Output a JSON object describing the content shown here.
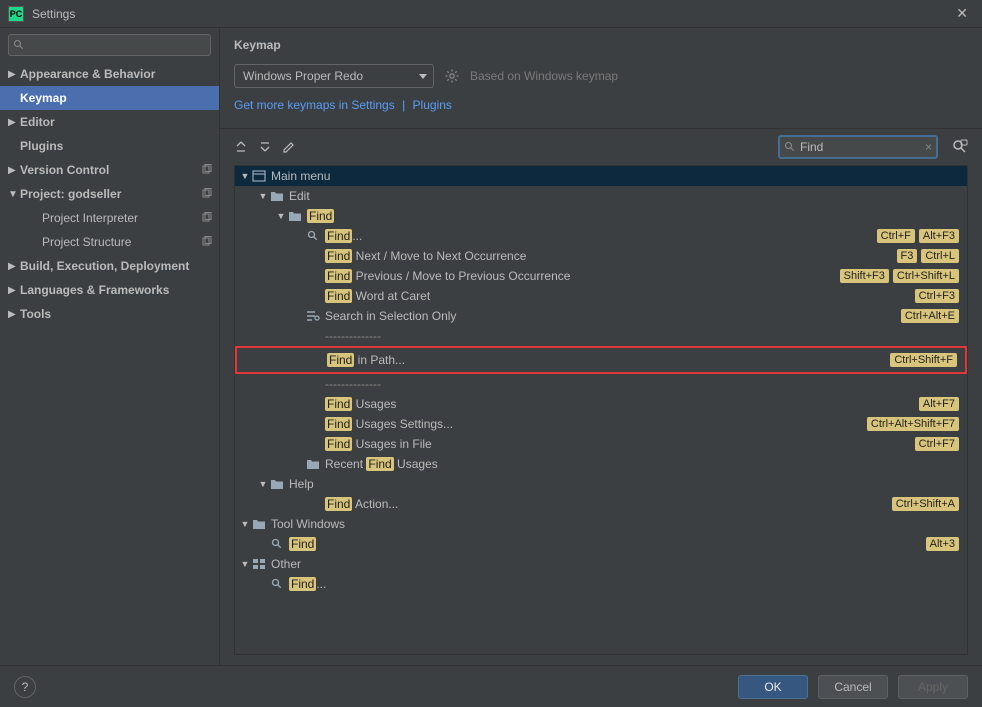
{
  "window": {
    "title": "Settings"
  },
  "search": {
    "placeholder": ""
  },
  "sidebar": {
    "items": [
      {
        "label": "Appearance & Behavior",
        "arrow": "▶",
        "bold": true
      },
      {
        "label": "Keymap",
        "bold": true,
        "selected": true
      },
      {
        "label": "Editor",
        "arrow": "▶",
        "bold": true
      },
      {
        "label": "Plugins",
        "bold": true
      },
      {
        "label": "Version Control",
        "arrow": "▶",
        "bold": true,
        "copy": true
      },
      {
        "label": "Project: godseller",
        "arrow": "▼",
        "bold": true,
        "copy": true
      },
      {
        "label": "Project Interpreter",
        "indent": 1,
        "copy": true
      },
      {
        "label": "Project Structure",
        "indent": 1,
        "copy": true
      },
      {
        "label": "Build, Execution, Deployment",
        "arrow": "▶",
        "bold": true
      },
      {
        "label": "Languages & Frameworks",
        "arrow": "▶",
        "bold": true
      },
      {
        "label": "Tools",
        "arrow": "▶",
        "bold": true
      }
    ]
  },
  "keymap": {
    "heading": "Keymap",
    "scheme": "Windows Proper Redo",
    "based": "Based on Windows keymap",
    "link1": "Get more keymaps in Settings",
    "link2": "Plugins",
    "filter": "Find",
    "colors": {
      "highlight_bg": "#d8c47a",
      "highlight_fg": "#222222",
      "row_selected_bg": "#0d293e",
      "red_border": "#e03838",
      "link": "#589df6"
    },
    "tree": [
      {
        "depth": 0,
        "arrow": "▼",
        "icon": "menu",
        "text": "Main menu",
        "selected": true
      },
      {
        "depth": 1,
        "arrow": "▼",
        "icon": "folder",
        "text": "Edit"
      },
      {
        "depth": 2,
        "arrow": "▼",
        "icon": "folder",
        "hl": "Find",
        "text": ""
      },
      {
        "depth": 3,
        "icon": "search",
        "hl": "Find",
        "text": "...",
        "shortcuts": [
          "Ctrl+F",
          "Alt+F3"
        ]
      },
      {
        "depth": 3,
        "hl": "Find",
        "text": " Next / Move to Next Occurrence",
        "shortcuts": [
          "F3",
          "Ctrl+L"
        ]
      },
      {
        "depth": 3,
        "hl": "Find",
        "text": " Previous / Move to Previous Occurrence",
        "shortcuts": [
          "Shift+F3",
          "Ctrl+Shift+L"
        ]
      },
      {
        "depth": 3,
        "hl": "Find",
        "text": " Word at Caret",
        "shortcuts": [
          "Ctrl+F3"
        ]
      },
      {
        "depth": 3,
        "icon": "selsearch",
        "text": "Search in Selection Only",
        "shortcuts": [
          "Ctrl+Alt+E"
        ]
      },
      {
        "depth": 3,
        "separator": true,
        "text": "--------------"
      },
      {
        "depth": 3,
        "hl": "Find",
        "text": " in Path...",
        "shortcuts": [
          "Ctrl+Shift+F"
        ],
        "highlighted": true
      },
      {
        "depth": 3,
        "separator": true,
        "text": "--------------"
      },
      {
        "depth": 3,
        "hl": "Find",
        "text": " Usages",
        "shortcuts": [
          "Alt+F7"
        ]
      },
      {
        "depth": 3,
        "hl": "Find",
        "text": " Usages Settings...",
        "shortcuts": [
          "Ctrl+Alt+Shift+F7"
        ]
      },
      {
        "depth": 3,
        "hl": "Find",
        "text": " Usages in File",
        "shortcuts": [
          "Ctrl+F7"
        ]
      },
      {
        "depth": 3,
        "icon": "folder",
        "pre": "Recent ",
        "hl": "Find",
        "text": " Usages"
      },
      {
        "depth": 1,
        "arrow": "▼",
        "icon": "folder",
        "text": "Help"
      },
      {
        "depth": 3,
        "hl": "Find",
        "text": " Action...",
        "shortcuts": [
          "Ctrl+Shift+A"
        ]
      },
      {
        "depth": 0,
        "arrow": "▼",
        "icon": "folder",
        "text": "Tool Windows"
      },
      {
        "depth": 1,
        "icon": "search",
        "hl": "Find",
        "text": "",
        "shortcuts": [
          "Alt+3"
        ]
      },
      {
        "depth": 0,
        "arrow": "▼",
        "icon": "other",
        "text": "Other"
      },
      {
        "depth": 1,
        "icon": "search",
        "hl": "Find",
        "text": "..."
      }
    ]
  },
  "footer": {
    "ok": "OK",
    "cancel": "Cancel",
    "apply": "Apply"
  }
}
